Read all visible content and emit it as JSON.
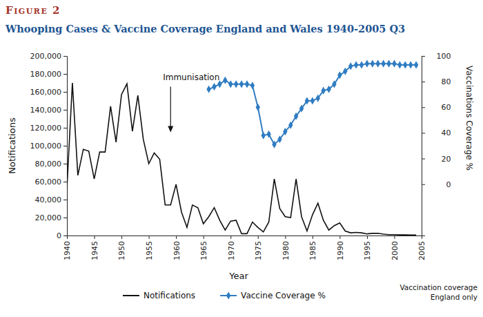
{
  "chart_data": {
    "type": "line",
    "title": "Figure 2",
    "subtitle": "Whooping Cases & Vaccine Coverage England and Wales 1940-2005 Q3",
    "x_label": "Year",
    "y_label": "Notifications",
    "y2_label": "Vaccinations Coverage %",
    "footnote": [
      "Vaccination coverage",
      "England only"
    ],
    "annotations": [
      {
        "text": "Immunisation",
        "x": 1959,
        "y": 115000
      }
    ],
    "x": [
      1940,
      1941,
      1942,
      1943,
      1944,
      1945,
      1946,
      1947,
      1948,
      1949,
      1950,
      1951,
      1952,
      1953,
      1954,
      1955,
      1956,
      1957,
      1958,
      1959,
      1960,
      1961,
      1962,
      1963,
      1964,
      1965,
      1966,
      1967,
      1968,
      1969,
      1970,
      1971,
      1972,
      1973,
      1974,
      1975,
      1976,
      1977,
      1978,
      1979,
      1980,
      1981,
      1982,
      1983,
      1984,
      1985,
      1986,
      1987,
      1988,
      1989,
      1990,
      1991,
      1992,
      1993,
      1994,
      1995,
      1996,
      1997,
      1998,
      1999,
      2000,
      2001,
      2002,
      2003,
      2004
    ],
    "series": [
      {
        "name": "Notifications",
        "color": "#111111",
        "line_style": "solid",
        "values": [
          53000,
          170000,
          67000,
          96000,
          94000,
          63000,
          93000,
          93000,
          144000,
          104000,
          157000,
          169000,
          116000,
          156000,
          107000,
          80000,
          92000,
          85000,
          34000,
          34000,
          57000,
          26000,
          9000,
          34000,
          31000,
          13000,
          21000,
          31000,
          17000,
          6000,
          16000,
          17000,
          2000,
          2000,
          15000,
          9000,
          4000,
          15000,
          63000,
          30000,
          21000,
          20000,
          63000,
          21000,
          5000,
          23000,
          36000,
          17000,
          6000,
          11000,
          14000,
          5000,
          3000,
          3500,
          3000,
          1800,
          2400,
          2500,
          1500,
          1000,
          1000,
          700,
          700,
          500,
          500
        ]
      },
      {
        "name": "Vaccine Coverage %",
        "color": "#2f7cc2",
        "line_style": "solid",
        "marker": "diamond",
        "axis": "y2",
        "values": [
          null,
          null,
          null,
          null,
          null,
          null,
          null,
          null,
          null,
          null,
          null,
          null,
          null,
          null,
          null,
          null,
          null,
          null,
          null,
          null,
          null,
          null,
          null,
          null,
          null,
          null,
          74,
          76,
          78,
          81,
          78,
          78,
          78,
          78,
          77,
          60,
          38,
          39,
          31,
          35,
          41,
          46,
          53,
          59,
          65,
          65,
          67,
          73,
          74,
          78,
          85,
          88,
          92,
          93,
          93,
          94,
          94,
          94,
          94,
          94,
          94,
          93,
          93,
          93,
          93
        ]
      }
    ],
    "xlim": [
      1940,
      2005
    ],
    "xticks": [
      1940,
      1945,
      1950,
      1955,
      1960,
      1965,
      1970,
      1975,
      1980,
      1985,
      1990,
      1995,
      2000,
      2005
    ],
    "ylim": [
      0,
      200000
    ],
    "yticks": [
      0,
      {
        "value": 20000,
        "label": "20,000"
      },
      {
        "value": 40000,
        "label": "40,000"
      },
      {
        "value": 60000,
        "label": "60,000"
      },
      {
        "value": 80000,
        "label": "80,000"
      },
      {
        "value": 100000,
        "label": "100,000"
      },
      {
        "value": 120000,
        "label": "120,000"
      },
      {
        "value": 140000,
        "label": "140,000"
      },
      {
        "value": 160000,
        "label": "160,000"
      },
      {
        "value": 180000,
        "label": "180,000"
      },
      {
        "value": 200000,
        "label": "200,000"
      }
    ],
    "y2lim": [
      -40,
      100
    ],
    "y2ticks": [
      0,
      20,
      40,
      60,
      80,
      100
    ],
    "grid": false,
    "legend": "bottom"
  }
}
